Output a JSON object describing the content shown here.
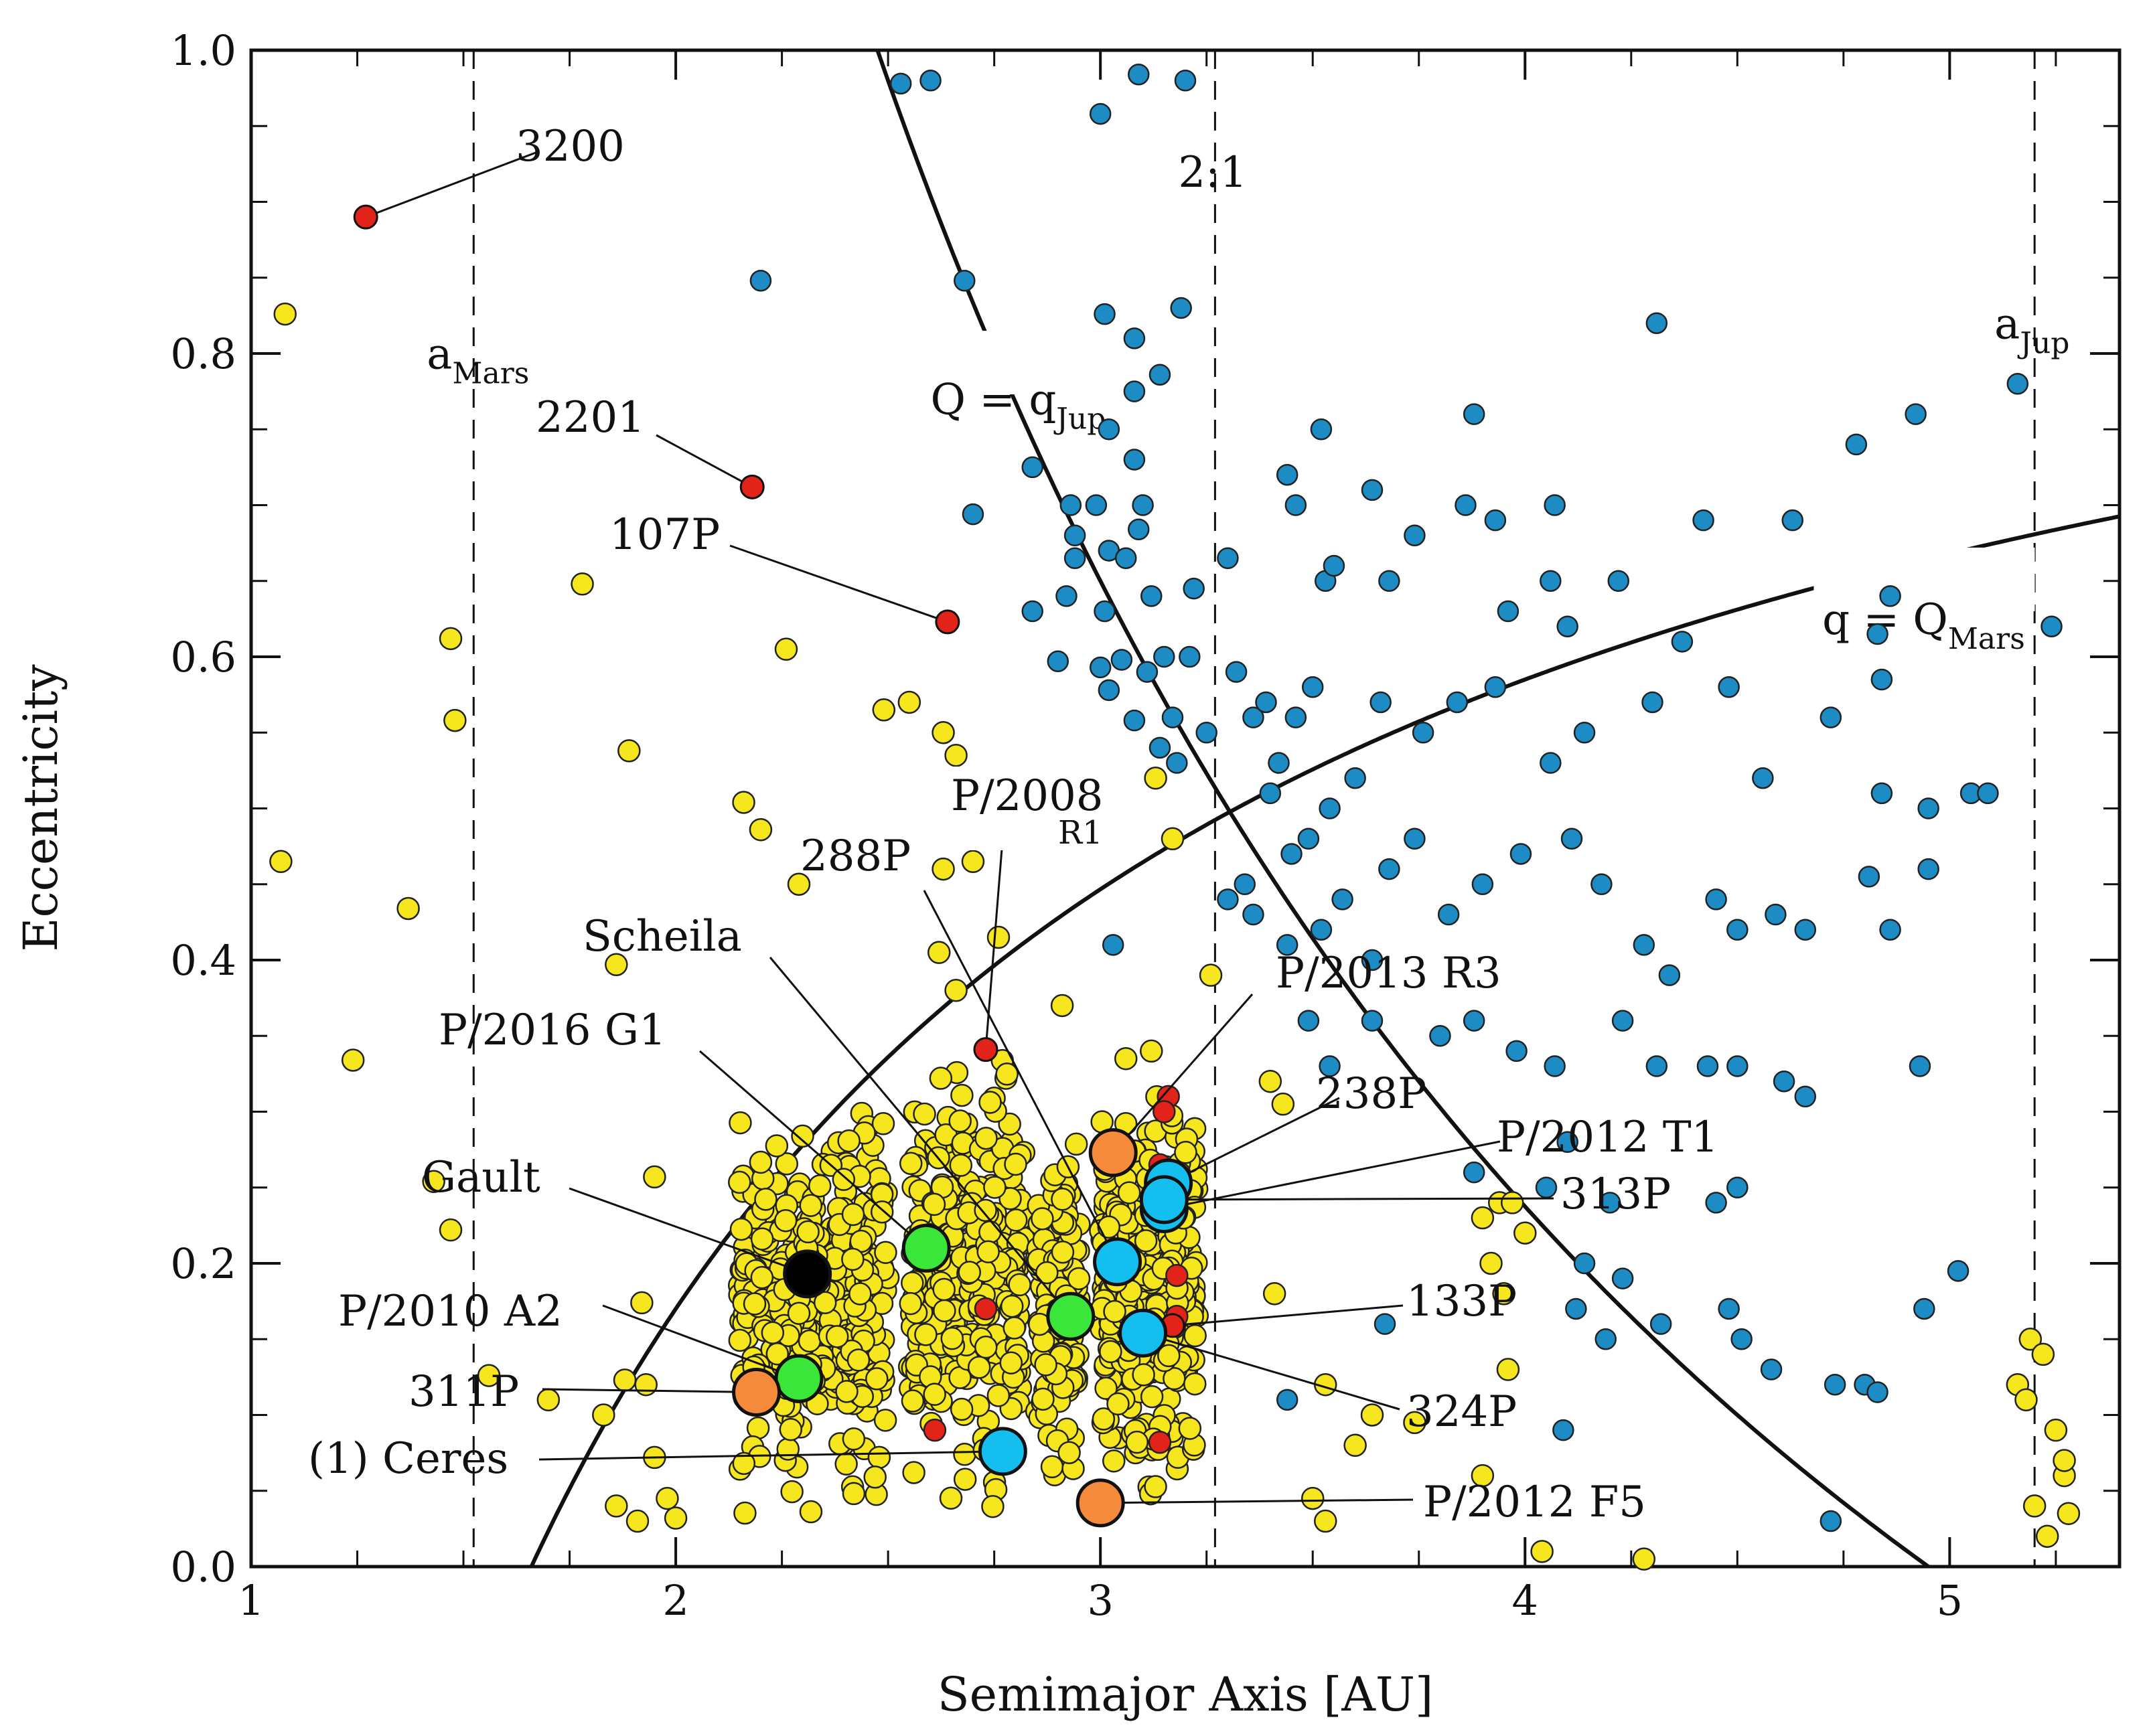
{
  "colors": {
    "red": "#e2231a",
    "blue": "#1e8cc4",
    "yellow": "#f5e61e",
    "orange": "#f58a3a",
    "green": "#39e639",
    "cyan": "#14bff0",
    "black": "#000000"
  },
  "chart_data": {
    "type": "scatter",
    "title": "",
    "xlabel": "Semimajor Axis [AU]",
    "ylabel": "Eccentricity",
    "xlim": [
      1,
      5.4
    ],
    "ylim": [
      0,
      1
    ],
    "xticks": [
      1,
      2,
      3,
      4,
      5
    ],
    "yticks": [
      0,
      0.2,
      0.4,
      0.6,
      0.8,
      1.0
    ],
    "xtick_labels": [
      "1",
      "2",
      "3",
      "4",
      "5"
    ],
    "ytick_labels": [
      "0.0",
      "0.2",
      "0.4",
      "0.6",
      "0.8",
      "1.0"
    ],
    "grid": false,
    "reference_lines": [
      {
        "label": "a",
        "sub": "Mars",
        "x": 1.524
      },
      {
        "label": "2:1",
        "sub": "",
        "x": 3.27
      },
      {
        "label": "a",
        "sub": "Jup",
        "x": 5.2
      }
    ],
    "curves": [
      {
        "label": "Q = q",
        "sub": "Jup",
        "q_jup": 4.95
      },
      {
        "label": "q = Q",
        "sub": "Mars",
        "q_mars": 1.66
      }
    ],
    "named_objects": [
      {
        "name": "3200",
        "a": 1.27,
        "e": 0.89,
        "color": "red",
        "size": "small"
      },
      {
        "name": "2201",
        "a": 2.18,
        "e": 0.712,
        "color": "red",
        "size": "small"
      },
      {
        "name": "107P",
        "a": 2.64,
        "e": 0.623,
        "color": "red",
        "size": "small"
      },
      {
        "name": "P/2008 R1",
        "a": 2.73,
        "e": 0.341,
        "color": "red",
        "size": "small"
      },
      {
        "name": "288P",
        "a": 3.04,
        "e": 0.201,
        "color": "cyan",
        "size": "large"
      },
      {
        "name": "Scheila",
        "a": 2.93,
        "e": 0.165,
        "color": "green",
        "size": "large"
      },
      {
        "name": "P/2016 G1",
        "a": 2.59,
        "e": 0.21,
        "color": "green",
        "size": "large"
      },
      {
        "name": "Gault",
        "a": 2.31,
        "e": 0.193,
        "color": "black",
        "size": "large"
      },
      {
        "name": "P/2010 A2",
        "a": 2.29,
        "e": 0.124,
        "color": "green",
        "size": "large"
      },
      {
        "name": "311P",
        "a": 2.19,
        "e": 0.115,
        "color": "orange",
        "size": "large"
      },
      {
        "name": "(1) Ceres",
        "a": 2.77,
        "e": 0.076,
        "color": "cyan",
        "size": "large"
      },
      {
        "name": "P/2013 R3",
        "a": 3.03,
        "e": 0.273,
        "color": "orange",
        "size": "large"
      },
      {
        "name": "238P",
        "a": 3.16,
        "e": 0.253,
        "color": "cyan",
        "size": "large"
      },
      {
        "name": "P/2012 T1",
        "a": 3.15,
        "e": 0.236,
        "color": "cyan",
        "size": "large"
      },
      {
        "name": "313P",
        "a": 3.15,
        "e": 0.242,
        "color": "cyan",
        "size": "large"
      },
      {
        "name": "133P",
        "a": 3.17,
        "e": 0.159,
        "color": "red",
        "size": "small"
      },
      {
        "name": "324P",
        "a": 3.1,
        "e": 0.154,
        "color": "cyan",
        "size": "large"
      },
      {
        "name": "P/2012 F5",
        "a": 3.0,
        "e": 0.042,
        "color": "orange",
        "size": "large"
      }
    ],
    "background_series": [
      {
        "color": "yellow",
        "description_of": "main-belt asteroids",
        "points": [
          [
            1.08,
            0.826
          ],
          [
            1.07,
            0.465
          ],
          [
            1.24,
            0.334
          ],
          [
            1.37,
            0.434
          ],
          [
            1.47,
            0.612
          ],
          [
            1.48,
            0.558
          ],
          [
            1.43,
            0.254
          ],
          [
            1.47,
            0.222
          ],
          [
            1.56,
            0.126
          ],
          [
            1.7,
            0.11
          ],
          [
            1.78,
            0.648
          ],
          [
            1.86,
            0.397
          ],
          [
            1.88,
            0.123
          ],
          [
            1.89,
            0.538
          ],
          [
            1.92,
            0.174
          ],
          [
            1.95,
            0.257
          ],
          [
            1.93,
            0.12
          ],
          [
            1.83,
            0.1
          ],
          [
            1.86,
            0.04
          ],
          [
            1.91,
            0.03
          ],
          [
            1.98,
            0.045
          ],
          [
            2.0,
            0.032
          ],
          [
            1.95,
            0.072
          ],
          [
            2.16,
            0.504
          ],
          [
            2.2,
            0.486
          ],
          [
            2.26,
            0.605
          ],
          [
            2.29,
            0.45
          ],
          [
            2.49,
            0.565
          ],
          [
            2.55,
            0.57
          ],
          [
            2.63,
            0.55
          ],
          [
            2.66,
            0.535
          ],
          [
            2.73,
            0.49
          ],
          [
            2.63,
            0.46
          ],
          [
            2.7,
            0.465
          ],
          [
            2.62,
            0.405
          ],
          [
            2.76,
            0.415
          ],
          [
            2.66,
            0.38
          ],
          [
            2.91,
            0.37
          ],
          [
            3.13,
            0.52
          ],
          [
            3.06,
            0.335
          ],
          [
            3.12,
            0.34
          ],
          [
            3.17,
            0.48
          ],
          [
            3.26,
            0.39
          ],
          [
            3.4,
            0.32
          ],
          [
            3.43,
            0.305
          ],
          [
            3.53,
            0.12
          ],
          [
            3.6,
            0.08
          ],
          [
            3.41,
            0.18
          ],
          [
            3.5,
            0.045
          ],
          [
            3.53,
            0.03
          ],
          [
            3.64,
            0.1
          ],
          [
            3.74,
            0.095
          ],
          [
            3.9,
            0.23
          ],
          [
            3.94,
            0.24
          ],
          [
            3.97,
            0.24
          ],
          [
            3.92,
            0.2
          ],
          [
            4.0,
            0.22
          ],
          [
            3.95,
            0.18
          ],
          [
            3.96,
            0.13
          ],
          [
            3.9,
            0.06
          ],
          [
            4.04,
            0.01
          ],
          [
            4.28,
            0.005
          ],
          [
            5.19,
            0.15
          ],
          [
            5.22,
            0.14
          ],
          [
            5.16,
            0.12
          ],
          [
            5.18,
            0.11
          ],
          [
            5.25,
            0.09
          ],
          [
            5.27,
            0.06
          ],
          [
            5.2,
            0.04
          ],
          [
            5.23,
            0.02
          ],
          [
            5.28,
            0.035
          ],
          [
            5.27,
            0.07
          ]
        ]
      },
      {
        "color": "blue",
        "description_of": "comet-like orbits",
        "points": [
          [
            2.53,
            0.978
          ],
          [
            2.6,
            0.98
          ],
          [
            3.0,
            0.958
          ],
          [
            3.09,
            0.984
          ],
          [
            3.2,
            0.98
          ],
          [
            2.2,
            0.848
          ],
          [
            2.68,
            0.848
          ],
          [
            3.01,
            0.826
          ],
          [
            3.08,
            0.81
          ],
          [
            3.19,
            0.83
          ],
          [
            3.14,
            0.786
          ],
          [
            3.08,
            0.775
          ],
          [
            3.02,
            0.75
          ],
          [
            3.08,
            0.73
          ],
          [
            2.84,
            0.725
          ],
          [
            2.7,
            0.694
          ],
          [
            2.93,
            0.7
          ],
          [
            2.99,
            0.7
          ],
          [
            3.1,
            0.7
          ],
          [
            3.09,
            0.684
          ],
          [
            2.94,
            0.68
          ],
          [
            2.94,
            0.665
          ],
          [
            3.02,
            0.67
          ],
          [
            3.06,
            0.665
          ],
          [
            2.92,
            0.64
          ],
          [
            3.12,
            0.64
          ],
          [
            3.22,
            0.645
          ],
          [
            3.3,
            0.665
          ],
          [
            3.01,
            0.63
          ],
          [
            2.84,
            0.63
          ],
          [
            3.15,
            0.6
          ],
          [
            3.21,
            0.6
          ],
          [
            2.9,
            0.597
          ],
          [
            3.0,
            0.593
          ],
          [
            3.05,
            0.598
          ],
          [
            3.11,
            0.59
          ],
          [
            3.02,
            0.578
          ],
          [
            3.08,
            0.558
          ],
          [
            3.17,
            0.56
          ],
          [
            3.14,
            0.54
          ],
          [
            3.18,
            0.53
          ],
          [
            3.25,
            0.55
          ],
          [
            3.32,
            0.59
          ],
          [
            3.36,
            0.56
          ],
          [
            3.39,
            0.57
          ],
          [
            3.42,
            0.53
          ],
          [
            3.46,
            0.56
          ],
          [
            3.5,
            0.58
          ],
          [
            3.53,
            0.65
          ],
          [
            3.55,
            0.66
          ],
          [
            3.52,
            0.75
          ],
          [
            3.44,
            0.72
          ],
          [
            3.46,
            0.7
          ],
          [
            3.64,
            0.71
          ],
          [
            3.68,
            0.65
          ],
          [
            3.74,
            0.68
          ],
          [
            3.86,
            0.7
          ],
          [
            3.88,
            0.76
          ],
          [
            3.93,
            0.69
          ],
          [
            4.07,
            0.7
          ],
          [
            4.1,
            0.62
          ],
          [
            4.06,
            0.65
          ],
          [
            4.22,
            0.65
          ],
          [
            3.96,
            0.63
          ],
          [
            4.31,
            0.82
          ],
          [
            4.42,
            0.69
          ],
          [
            4.63,
            0.69
          ],
          [
            4.78,
            0.74
          ],
          [
            4.92,
            0.76
          ],
          [
            5.16,
            0.78
          ],
          [
            5.24,
            0.62
          ],
          [
            4.86,
            0.64
          ],
          [
            4.83,
            0.615
          ],
          [
            4.84,
            0.585
          ],
          [
            4.72,
            0.56
          ],
          [
            4.56,
            0.52
          ],
          [
            4.48,
            0.58
          ],
          [
            4.37,
            0.61
          ],
          [
            4.3,
            0.57
          ],
          [
            4.14,
            0.55
          ],
          [
            4.06,
            0.53
          ],
          [
            3.93,
            0.58
          ],
          [
            3.84,
            0.57
          ],
          [
            3.76,
            0.55
          ],
          [
            3.66,
            0.57
          ],
          [
            3.6,
            0.52
          ],
          [
            3.54,
            0.5
          ],
          [
            3.49,
            0.48
          ],
          [
            3.45,
            0.47
          ],
          [
            3.4,
            0.51
          ],
          [
            3.34,
            0.45
          ],
          [
            3.3,
            0.44
          ],
          [
            3.36,
            0.43
          ],
          [
            3.44,
            0.41
          ],
          [
            3.52,
            0.42
          ],
          [
            3.57,
            0.44
          ],
          [
            3.64,
            0.4
          ],
          [
            3.68,
            0.46
          ],
          [
            3.74,
            0.48
          ],
          [
            3.82,
            0.43
          ],
          [
            3.9,
            0.45
          ],
          [
            3.99,
            0.47
          ],
          [
            4.11,
            0.48
          ],
          [
            4.18,
            0.45
          ],
          [
            4.28,
            0.41
          ],
          [
            4.34,
            0.39
          ],
          [
            4.45,
            0.44
          ],
          [
            4.5,
            0.42
          ],
          [
            4.59,
            0.43
          ],
          [
            4.66,
            0.42
          ],
          [
            4.81,
            0.455
          ],
          [
            4.84,
            0.51
          ],
          [
            4.95,
            0.5
          ],
          [
            5.05,
            0.51
          ],
          [
            5.09,
            0.51
          ],
          [
            4.95,
            0.46
          ],
          [
            4.86,
            0.42
          ],
          [
            3.03,
            0.41
          ],
          [
            3.49,
            0.36
          ],
          [
            3.54,
            0.33
          ],
          [
            3.64,
            0.36
          ],
          [
            3.8,
            0.35
          ],
          [
            3.88,
            0.36
          ],
          [
            3.98,
            0.34
          ],
          [
            4.07,
            0.33
          ],
          [
            4.23,
            0.36
          ],
          [
            4.31,
            0.33
          ],
          [
            4.5,
            0.33
          ],
          [
            4.43,
            0.33
          ],
          [
            4.66,
            0.31
          ],
          [
            4.61,
            0.32
          ],
          [
            4.1,
            0.28
          ],
          [
            4.2,
            0.24
          ],
          [
            4.45,
            0.24
          ],
          [
            4.5,
            0.25
          ],
          [
            4.05,
            0.25
          ],
          [
            3.88,
            0.26
          ],
          [
            4.23,
            0.19
          ],
          [
            4.12,
            0.17
          ],
          [
            4.19,
            0.15
          ],
          [
            4.32,
            0.16
          ],
          [
            4.14,
            0.2
          ],
          [
            4.48,
            0.17
          ],
          [
            4.51,
            0.15
          ],
          [
            4.58,
            0.13
          ],
          [
            4.73,
            0.12
          ],
          [
            4.8,
            0.12
          ],
          [
            4.83,
            0.115
          ],
          [
            4.94,
            0.17
          ],
          [
            5.02,
            0.195
          ],
          [
            4.93,
            0.33
          ],
          [
            4.72,
            0.03
          ],
          [
            4.09,
            0.09
          ],
          [
            3.67,
            0.16
          ],
          [
            3.44,
            0.11
          ]
        ]
      },
      {
        "color": "red",
        "description_of": "additional active objects",
        "points": [
          [
            3.16,
            0.31
          ],
          [
            3.15,
            0.3
          ],
          [
            3.14,
            0.265
          ],
          [
            3.18,
            0.192
          ],
          [
            2.73,
            0.17
          ],
          [
            2.61,
            0.09
          ],
          [
            3.14,
            0.082
          ],
          [
            3.18,
            0.165
          ]
        ]
      }
    ],
    "legend": "none"
  }
}
